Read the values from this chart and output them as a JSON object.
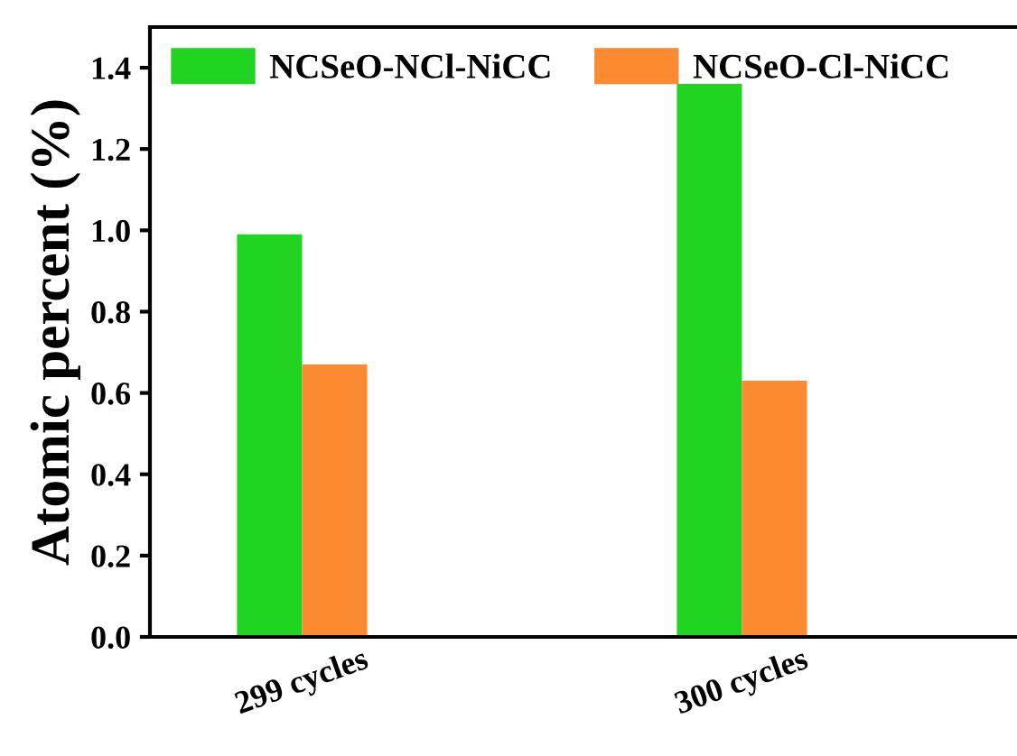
{
  "chart_data": {
    "type": "bar",
    "ylabel": "Atomic percent (%)",
    "categories": [
      "299 cycles",
      "300 cycles"
    ],
    "series": [
      {
        "name": "NCSeO-NCl-NiCC",
        "color": "#22d422",
        "values": [
          0.99,
          1.36
        ]
      },
      {
        "name": "NCSeO-Cl-NiCC",
        "color": "#fb8a30",
        "values": [
          0.67,
          0.63
        ]
      }
    ],
    "ylim": [
      0,
      1.5
    ],
    "yticks": [
      {
        "value": 0,
        "label": "0.0"
      },
      0.2,
      0.4,
      0.6,
      0.8,
      {
        "value": 1,
        "label": "1.0"
      },
      1.2,
      1.4
    ],
    "grid": false,
    "legend": "top"
  }
}
